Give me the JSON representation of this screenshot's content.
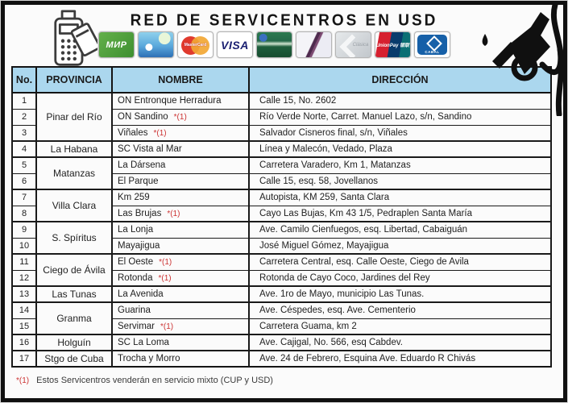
{
  "title": "RED DE SERVICENTROS EN USD",
  "icons": {
    "left": "pos-terminal-card-icon",
    "right": "fuel-nozzle-icon"
  },
  "cards": [
    {
      "name": "mir-card",
      "label": "МИР",
      "style": "mir"
    },
    {
      "name": "tropical-beach-card",
      "label": "",
      "style": "tropical"
    },
    {
      "name": "mastercard-card",
      "label": "MasterCard",
      "style": "mastercard"
    },
    {
      "name": "visa-card",
      "label": "VISA",
      "style": "visa"
    },
    {
      "name": "green-bank-card",
      "label": "",
      "style": "greenbank"
    },
    {
      "name": "swoosh-bank-card",
      "label": "",
      "style": "swoosh"
    },
    {
      "name": "chevron-bank-card",
      "label": "Clásica",
      "style": "chevron"
    },
    {
      "name": "unionpay-card",
      "label": "UnionPay 银联",
      "style": "unionpay"
    },
    {
      "name": "cabal-card",
      "label": "CABAL",
      "style": "cabal"
    }
  ],
  "table": {
    "headers": [
      "No.",
      "PROVINCIA",
      "NOMBRE",
      "DIRECCIÓN"
    ],
    "groups": [
      {
        "province": "Pinar del Río",
        "rows": [
          {
            "no": "1",
            "nombre": "ON Entronque Herradura",
            "marker": "",
            "direccion": "Calle 15, No. 2602"
          },
          {
            "no": "2",
            "nombre": "ON Sandino",
            "marker": "*(1)",
            "direccion": "Río Verde Norte, Carret. Manuel Lazo, s/n, Sandino"
          },
          {
            "no": "3",
            "nombre": "Viñales",
            "marker": "*(1)",
            "direccion": "Salvador Cisneros final, s/n, Viñales"
          }
        ]
      },
      {
        "province": "La Habana",
        "rows": [
          {
            "no": "4",
            "nombre": "SC Vista al Mar",
            "marker": "",
            "direccion": "Línea y Malecón, Vedado, Plaza"
          }
        ]
      },
      {
        "province": "Matanzas",
        "rows": [
          {
            "no": "5",
            "nombre": "La Dársena",
            "marker": "",
            "direccion": "Carretera Varadero, Km 1, Matanzas"
          },
          {
            "no": "6",
            "nombre": "El Parque",
            "marker": "",
            "direccion": "Calle 15, esq. 58, Jovellanos"
          }
        ]
      },
      {
        "province": "Villa Clara",
        "rows": [
          {
            "no": "7",
            "nombre": "Km 259",
            "marker": "",
            "direccion": "Autopista, KM 259, Santa Clara"
          },
          {
            "no": "8",
            "nombre": "Las Brujas",
            "marker": "*(1)",
            "direccion": "Cayo Las Bujas, Km 43 1/5, Pedraplen Santa María"
          }
        ]
      },
      {
        "province": "S. Spíritus",
        "rows": [
          {
            "no": "9",
            "nombre": "La Lonja",
            "marker": "",
            "direccion": "Ave. Camilo Cienfuegos, esq. Libertad, Cabaiguán"
          },
          {
            "no": "10",
            "nombre": "Mayajigua",
            "marker": "",
            "direccion": "José Miguel Gómez, Mayajigua"
          }
        ]
      },
      {
        "province": "Ciego de Ávila",
        "rows": [
          {
            "no": "11",
            "nombre": "El Oeste",
            "marker": "*(1)",
            "direccion": "Carretera Central, esq. Calle Oeste, Ciego de Avila"
          },
          {
            "no": "12",
            "nombre": "Rotonda",
            "marker": "*(1)",
            "direccion": "Rotonda de Cayo Coco, Jardines del Rey"
          }
        ]
      },
      {
        "province": "Las Tunas",
        "rows": [
          {
            "no": "13",
            "nombre": "La Avenida",
            "marker": "",
            "direccion": "Ave. 1ro de Mayo, municipio Las Tunas."
          }
        ]
      },
      {
        "province": "Granma",
        "rows": [
          {
            "no": "14",
            "nombre": "Guarina",
            "marker": "",
            "direccion": "Ave. Céspedes, esq. Ave. Cementerio"
          },
          {
            "no": "15",
            "nombre": "Servimar",
            "marker": "*(1)",
            "direccion": "Carretera Guama, km 2"
          }
        ]
      },
      {
        "province": "Holguín",
        "rows": [
          {
            "no": "16",
            "nombre": "SC La Loma",
            "marker": "",
            "direccion": "Ave. Cajigal, No. 566, esq Cabdev."
          }
        ]
      },
      {
        "province": "Stgo de Cuba",
        "rows": [
          {
            "no": "17",
            "nombre": "Trocha y Morro",
            "marker": "",
            "direccion": "Ave. 24 de Febrero, Esquina Ave. Eduardo R Chivás"
          }
        ]
      }
    ]
  },
  "footnote": {
    "marker": "*(1)",
    "text": "Estos Servicentros venderán en servicio mixto (CUP y USD)"
  },
  "colors": {
    "header_bg": "#abd7ee",
    "marker_red": "#cc3333",
    "frame_black": "#101010",
    "visa_blue": "#1a1f71",
    "mir_green": "#4f9f3c"
  }
}
